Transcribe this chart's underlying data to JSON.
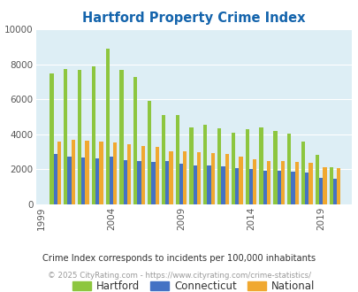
{
  "title": "Hartford Property Crime Index",
  "title_color": "#1464ac",
  "subtitle": "Crime Index corresponds to incidents per 100,000 inhabitants",
  "footer": "© 2025 CityRating.com - https://www.cityrating.com/crime-statistics/",
  "years": [
    2000,
    2001,
    2002,
    2003,
    2004,
    2005,
    2006,
    2007,
    2008,
    2009,
    2010,
    2011,
    2012,
    2013,
    2014,
    2015,
    2016,
    2017,
    2018,
    2019,
    2020
  ],
  "hartford": [
    7450,
    7750,
    7700,
    7900,
    8900,
    7700,
    7250,
    5900,
    5100,
    5100,
    4400,
    4550,
    4350,
    4100,
    4300,
    4400,
    4200,
    4050,
    3600,
    2850,
    2100
  ],
  "connecticut": [
    2900,
    2750,
    2700,
    2650,
    2750,
    2550,
    2500,
    2400,
    2450,
    2300,
    2200,
    2200,
    2150,
    2050,
    2000,
    1900,
    1900,
    1850,
    1800,
    1500,
    1480
  ],
  "national": [
    3600,
    3700,
    3650,
    3600,
    3550,
    3450,
    3350,
    3300,
    3050,
    3050,
    3000,
    2950,
    2900,
    2750,
    2600,
    2500,
    2450,
    2400,
    2350,
    2100,
    2050
  ],
  "hartford_color": "#8dc63f",
  "connecticut_color": "#4472c4",
  "national_color": "#f0a830",
  "bg_color": "#ddeef5",
  "ylim": [
    0,
    10000
  ],
  "yticks": [
    0,
    2000,
    4000,
    6000,
    8000,
    10000
  ],
  "xtick_years": [
    1999,
    2004,
    2009,
    2014,
    2019
  ],
  "bar_width": 0.27,
  "legend_labels": [
    "Hartford",
    "Connecticut",
    "National"
  ],
  "subtitle_color": "#333333",
  "footer_color": "#999999"
}
